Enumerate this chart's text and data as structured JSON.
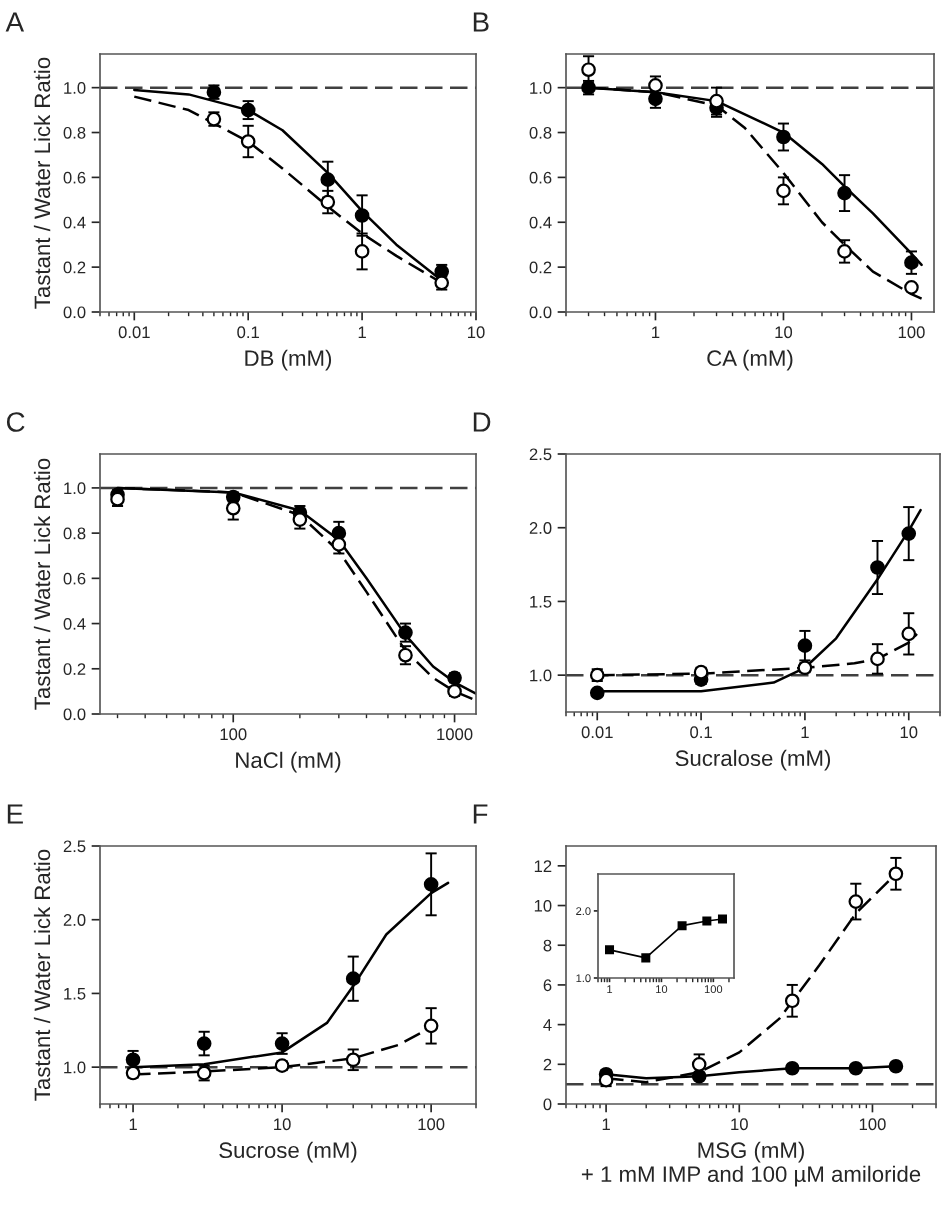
{
  "chart_data": [
    {
      "type": "scatter",
      "title": "A",
      "xlabel": "DB (mM)",
      "ylabel": "Tastant / Water Lick Ratio",
      "log": "x",
      "grid": false,
      "legend": false,
      "xlim": [
        0.005,
        10
      ],
      "xticks": [
        0.01,
        0.1,
        1,
        10
      ],
      "ylim": [
        0,
        1.15
      ],
      "yticks": [
        {
          "value": 0,
          "label": "0.0"
        },
        0.2,
        0.4,
        0.6,
        0.8,
        {
          "value": 1,
          "label": "1.0"
        }
      ],
      "ref_lines": [
        {
          "axis": "y",
          "value": 1,
          "color": "#404040",
          "line_style": "dashed"
        }
      ],
      "series": [
        {
          "marker": "circle",
          "color": "#000000",
          "x": [
            0.05,
            0.1,
            0.5,
            1,
            5
          ],
          "values": [
            0.98,
            0.9,
            0.59,
            0.43,
            0.18
          ],
          "errors": [
            0.03,
            0.04,
            0.08,
            0.09,
            0.03
          ]
        },
        {
          "marker": "circle",
          "color": "#ffffff",
          "x": [
            0.05,
            0.1,
            0.5,
            1,
            5
          ],
          "values": [
            0.86,
            0.76,
            0.49,
            0.27,
            0.13
          ],
          "errors": [
            0.03,
            0.07,
            0.05,
            0.08,
            0.03
          ]
        },
        {
          "type": "line",
          "line_style": "solid",
          "color": "#000000",
          "x": [
            0.01,
            0.03,
            0.1,
            0.2,
            0.5,
            1,
            2,
            5
          ],
          "values": [
            0.99,
            0.97,
            0.9,
            0.81,
            0.62,
            0.45,
            0.3,
            0.14
          ]
        },
        {
          "type": "line",
          "line_style": "dashed",
          "color": "#000000",
          "x": [
            0.01,
            0.03,
            0.1,
            0.2,
            0.5,
            1,
            2,
            5
          ],
          "values": [
            0.96,
            0.9,
            0.76,
            0.64,
            0.47,
            0.35,
            0.25,
            0.13
          ]
        }
      ]
    },
    {
      "type": "scatter",
      "title": "B",
      "xlabel": "CA (mM)",
      "log": "x",
      "grid": false,
      "legend": false,
      "xlim": [
        0.2,
        150
      ],
      "xticks": [
        1,
        10,
        100
      ],
      "ylim": [
        0,
        1.15
      ],
      "yticks": [
        {
          "value": 0,
          "label": "0.0"
        },
        0.2,
        0.4,
        0.6,
        0.8,
        {
          "value": 1,
          "label": "1.0"
        }
      ],
      "ref_lines": [
        {
          "axis": "y",
          "value": 1,
          "color": "#404040",
          "line_style": "dashed"
        }
      ],
      "series": [
        {
          "marker": "circle",
          "color": "#000000",
          "x": [
            0.3,
            1,
            3,
            10,
            30,
            100
          ],
          "values": [
            1.0,
            0.95,
            0.91,
            0.78,
            0.53,
            0.22
          ],
          "errors": [
            0.03,
            0.04,
            0.04,
            0.06,
            0.08,
            0.05
          ]
        },
        {
          "marker": "circle",
          "color": "#ffffff",
          "x": [
            0.3,
            1,
            3,
            10,
            30,
            100
          ],
          "values": [
            1.08,
            1.01,
            0.94,
            0.54,
            0.27,
            0.11
          ],
          "errors": [
            0.06,
            0.04,
            0.06,
            0.06,
            0.05,
            null
          ]
        },
        {
          "type": "line",
          "line_style": "solid",
          "color": "#000000",
          "x": [
            0.3,
            1,
            3,
            10,
            20,
            30,
            50,
            100,
            120
          ],
          "values": [
            1.0,
            0.98,
            0.94,
            0.8,
            0.66,
            0.56,
            0.44,
            0.26,
            0.21
          ]
        },
        {
          "type": "line",
          "line_style": "dashed",
          "color": "#000000",
          "x": [
            0.3,
            1,
            3,
            5,
            10,
            20,
            30,
            50,
            100,
            120
          ],
          "values": [
            1.0,
            0.98,
            0.92,
            0.82,
            0.62,
            0.4,
            0.3,
            0.18,
            0.08,
            0.06
          ]
        }
      ]
    },
    {
      "type": "scatter",
      "title": "C",
      "xlabel": "NaCl (mM)",
      "ylabel": "Tastant / Water Lick Ratio",
      "log": "x",
      "grid": false,
      "legend": false,
      "xlim": [
        25,
        1250
      ],
      "xticks": [
        100,
        1000
      ],
      "ylim": [
        0,
        1.15
      ],
      "yticks": [
        {
          "value": 0,
          "label": "0.0"
        },
        0.2,
        0.4,
        0.6,
        0.8,
        {
          "value": 1,
          "label": "1.0"
        }
      ],
      "ref_lines": [
        {
          "axis": "y",
          "value": 1,
          "color": "#404040",
          "line_style": "dashed"
        }
      ],
      "series": [
        {
          "marker": "circle",
          "color": "#000000",
          "x": [
            30,
            100,
            200,
            300,
            600,
            1000
          ],
          "values": [
            0.97,
            0.96,
            0.89,
            0.8,
            0.36,
            0.16
          ],
          "errors": [
            0.02,
            0.02,
            0.03,
            0.05,
            0.04,
            0.02
          ]
        },
        {
          "marker": "circle",
          "color": "#ffffff",
          "x": [
            30,
            100,
            200,
            300,
            600,
            1000
          ],
          "values": [
            0.95,
            0.91,
            0.86,
            0.75,
            0.26,
            0.1
          ],
          "errors": [
            0.03,
            0.05,
            0.04,
            0.04,
            0.04,
            0.02
          ]
        },
        {
          "type": "line",
          "line_style": "solid",
          "color": "#000000",
          "x": [
            30,
            100,
            200,
            300,
            400,
            600,
            800,
            1000,
            1250
          ],
          "values": [
            1.0,
            0.98,
            0.9,
            0.77,
            0.6,
            0.35,
            0.21,
            0.14,
            0.09
          ]
        },
        {
          "type": "line",
          "line_style": "dashed",
          "color": "#000000",
          "x": [
            30,
            100,
            200,
            300,
            400,
            600,
            800,
            1000,
            1250
          ],
          "values": [
            1.0,
            0.98,
            0.88,
            0.72,
            0.54,
            0.28,
            0.16,
            0.1,
            0.06
          ]
        }
      ]
    },
    {
      "type": "scatter",
      "title": "D",
      "xlabel": "Sucralose (mM)",
      "log": "x",
      "grid": false,
      "legend": false,
      "xlim": [
        0.005,
        20
      ],
      "xticks": [
        0.01,
        0.1,
        1,
        10
      ],
      "ylim": [
        0.75,
        2.5
      ],
      "yticks": [
        {
          "value": 1,
          "label": "1.0"
        },
        1.5,
        {
          "value": 2,
          "label": "2.0"
        },
        2.5
      ],
      "ref_lines": [
        {
          "axis": "y",
          "value": 1,
          "color": "#404040",
          "line_style": "dashed"
        }
      ],
      "series": [
        {
          "marker": "circle",
          "color": "#000000",
          "x": [
            0.01,
            0.1,
            1,
            5,
            10
          ],
          "values": [
            0.88,
            0.97,
            1.2,
            1.73,
            1.96
          ],
          "errors": [
            0.02,
            0.03,
            0.1,
            0.18,
            0.18
          ]
        },
        {
          "marker": "circle",
          "color": "#ffffff",
          "x": [
            0.01,
            0.1,
            1,
            5,
            10
          ],
          "values": [
            1.0,
            1.02,
            1.05,
            1.11,
            1.28
          ],
          "errors": [
            0.04,
            0.03,
            0.03,
            0.1,
            0.14
          ]
        },
        {
          "type": "line",
          "line_style": "solid",
          "color": "#000000",
          "x": [
            0.01,
            0.1,
            0.5,
            1,
            2,
            5,
            10,
            13
          ],
          "values": [
            0.89,
            0.89,
            0.95,
            1.05,
            1.25,
            1.65,
            1.98,
            2.12
          ]
        },
        {
          "type": "line",
          "line_style": "dashed",
          "color": "#000000",
          "x": [
            0.01,
            0.1,
            1,
            3,
            5,
            10,
            12
          ],
          "values": [
            1.0,
            1.01,
            1.05,
            1.08,
            1.11,
            1.22,
            1.28
          ]
        }
      ]
    },
    {
      "type": "scatter",
      "title": "E",
      "xlabel": "Sucrose (mM)",
      "ylabel": "Tastant / Water Lick Ratio",
      "log": "x",
      "grid": false,
      "legend": false,
      "xlim": [
        0.6,
        200
      ],
      "xticks": [
        1,
        10,
        100
      ],
      "ylim": [
        0.75,
        2.5
      ],
      "yticks": [
        {
          "value": 1,
          "label": "1.0"
        },
        1.5,
        {
          "value": 2,
          "label": "2.0"
        },
        2.5
      ],
      "ref_lines": [
        {
          "axis": "y",
          "value": 1,
          "color": "#404040",
          "line_style": "dashed"
        }
      ],
      "series": [
        {
          "marker": "circle",
          "color": "#000000",
          "x": [
            1,
            3,
            10,
            30,
            100
          ],
          "values": [
            1.05,
            1.16,
            1.16,
            1.6,
            2.24
          ],
          "errors": [
            0.06,
            0.08,
            0.07,
            0.15,
            0.21
          ]
        },
        {
          "marker": "circle",
          "color": "#ffffff",
          "x": [
            1,
            3,
            10,
            30,
            100
          ],
          "values": [
            0.96,
            0.96,
            1.01,
            1.05,
            1.28
          ],
          "errors": [
            0.03,
            0.05,
            0.03,
            0.07,
            0.12
          ]
        },
        {
          "type": "line",
          "line_style": "solid",
          "color": "#000000",
          "x": [
            1,
            3,
            10,
            20,
            30,
            50,
            100,
            130
          ],
          "values": [
            1.0,
            1.02,
            1.1,
            1.3,
            1.55,
            1.9,
            2.18,
            2.25
          ]
        },
        {
          "type": "line",
          "line_style": "dashed",
          "color": "#000000",
          "x": [
            1,
            3,
            10,
            30,
            60,
            100
          ],
          "values": [
            0.95,
            0.97,
            1.0,
            1.06,
            1.15,
            1.27
          ]
        }
      ]
    },
    {
      "type": "scatter",
      "title": "F",
      "xlabel": "MSG (mM)\n+ 1 mM IMP and 100 µM amiloride",
      "log": "x",
      "grid": false,
      "legend": false,
      "xlim": [
        0.5,
        300
      ],
      "xticks": [
        1,
        10,
        100
      ],
      "ylim": [
        0,
        13
      ],
      "yticks": [
        0,
        2,
        4,
        6,
        8,
        10,
        12
      ],
      "ref_lines": [
        {
          "axis": "y",
          "value": 1,
          "color": "#404040",
          "line_style": "dashed"
        }
      ],
      "series": [
        {
          "marker": "circle",
          "color": "#000000",
          "x": [
            1,
            5,
            25,
            75,
            150
          ],
          "values": [
            1.5,
            1.4,
            1.8,
            1.8,
            1.9
          ],
          "errors": [
            0.2,
            0.1,
            0.1,
            0.1,
            0.1
          ]
        },
        {
          "marker": "circle",
          "color": "#ffffff",
          "x": [
            1,
            5,
            25,
            75,
            150
          ],
          "values": [
            1.2,
            2.0,
            5.2,
            10.2,
            11.6
          ],
          "errors": [
            0.3,
            0.5,
            0.8,
            0.9,
            0.8
          ]
        },
        {
          "type": "line",
          "line_style": "solid",
          "color": "#000000",
          "x": [
            1,
            2,
            5,
            10,
            25,
            75,
            150
          ],
          "values": [
            1.5,
            1.3,
            1.4,
            1.6,
            1.8,
            1.8,
            1.9
          ]
        },
        {
          "type": "line",
          "line_style": "dashed",
          "color": "#000000",
          "x": [
            1,
            2,
            5,
            10,
            20,
            40,
            75,
            150
          ],
          "values": [
            1.3,
            1.1,
            1.6,
            2.6,
            4.3,
            7.0,
            9.6,
            11.6
          ]
        }
      ]
    },
    {
      "type": "line",
      "log": "x",
      "grid": false,
      "legend": false,
      "marker": "square",
      "xlim": [
        0.6,
        250
      ],
      "xticks": [
        1,
        10,
        100
      ],
      "ylim": [
        1.0,
        2.55
      ],
      "yticks": [
        {
          "value": 1,
          "label": "1.0"
        },
        {
          "value": 2,
          "label": "2.0"
        }
      ],
      "series": [
        {
          "line_style": "solid",
          "color": "#000000",
          "x": [
            1,
            5,
            25,
            75,
            150
          ],
          "values": [
            1.42,
            1.3,
            1.78,
            1.85,
            1.88
          ]
        }
      ]
    }
  ]
}
